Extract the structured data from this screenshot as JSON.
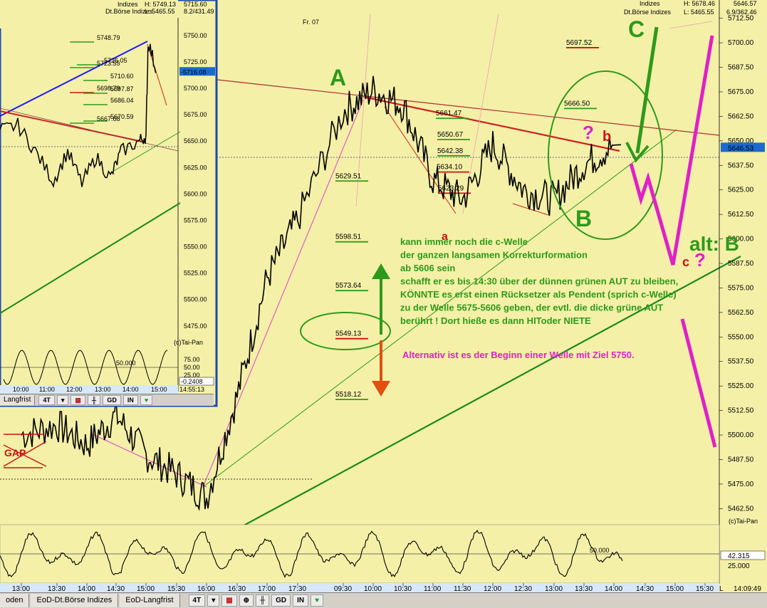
{
  "header": {
    "instrument_label": "Indizes",
    "exchange_label": "Dt.Börse Indizes",
    "high_text": "H: 5678.46",
    "low_text": "L: 5465.55",
    "extra_text": "6.9/362.46",
    "top_right_price": "5646.57",
    "day_marker": "Fr. 07"
  },
  "inset_header": {
    "instrument_label": "Indizes",
    "exchange_label": "Dt.Börse Indizes",
    "high_text": "H: 5749.13",
    "low_text": "L: 5465.55",
    "top_right_price": "5715.60",
    "extra_text": "8.2/431.49",
    "copyright": "(c)Tai-Pan",
    "current_value": "-5716.08",
    "osc_value": "-0.2408",
    "time_readout": "14:55:13"
  },
  "colors": {
    "background": "#f4f0a8",
    "price_line": "#000000",
    "green_annot": "#2e9a1a",
    "magenta_annot": "#e020c8",
    "red_annot": "#d01010",
    "blue_trend": "#1a1aff",
    "orange_arrow": "#e05010",
    "current_price_bg": "#1a6ad0"
  },
  "chart_data": {
    "type": "line",
    "title": "",
    "xlabel": "",
    "ylabel": "",
    "ylim": [
      5455,
      5720
    ],
    "y_ticks": [
      "5712.50",
      "5700.00",
      "5687.50",
      "5675.00",
      "5662.50",
      "5650.00",
      "5637.50",
      "5625.00",
      "5612.50",
      "5600.00",
      "5587.50",
      "5575.00",
      "5562.50",
      "5550.00",
      "5537.50",
      "5525.00",
      "5512.50",
      "5500.00",
      "5487.50",
      "5475.00",
      "5462.50"
    ],
    "x_ticks": [
      "13:00",
      "13:30",
      "14:00",
      "14:30",
      "15:00",
      "15:30",
      "16:00",
      "16:30",
      "17:00",
      "17:30",
      "09:30",
      "10:00",
      "10:30",
      "11:00",
      "11:30",
      "12:00",
      "12:30",
      "13:00",
      "13:30",
      "14:00",
      "14:30",
      "15:00",
      "15:30"
    ],
    "current_price": "5646.53",
    "copyright": "(c)Tai-Pan",
    "series": [
      {
        "x": [
          "13:00",
          "13:30",
          "14:00",
          "14:30",
          "15:00",
          "15:30",
          "16:00",
          "16:30",
          "17:00",
          "17:30",
          "09:30",
          "10:00",
          "10:30",
          "11:00",
          "11:30",
          "12:00",
          "12:30",
          "13:00",
          "13:30",
          "14:00"
        ],
        "values": [
          5500,
          5505,
          5495,
          5510,
          5490,
          5480,
          5468,
          5520,
          5580,
          5610,
          5665,
          5676,
          5668,
          5630,
          5620,
          5648,
          5625,
          5620,
          5638,
          5648
        ]
      }
    ],
    "levels": [
      {
        "label": "5697.52",
        "value": 5697.52
      },
      {
        "label": "5666.50",
        "value": 5666.5
      },
      {
        "label": "5661.47",
        "value": 5661.47
      },
      {
        "label": "5650.67",
        "value": 5650.67
      },
      {
        "label": "5642.38",
        "value": 5642.38
      },
      {
        "label": "5634.10",
        "value": 5634.1
      },
      {
        "label": "5629.51",
        "value": 5629.51
      },
      {
        "label": "5623.29",
        "value": 5623.29
      },
      {
        "label": "5598.51",
        "value": 5598.51
      },
      {
        "label": "5573.64",
        "value": 5573.64
      },
      {
        "label": "5549.13",
        "value": 5549.13
      },
      {
        "label": "5518.12",
        "value": 5518.12
      }
    ],
    "oscillator": {
      "ticks": [
        "42.315",
        "25.000"
      ],
      "mid_label": "50.000"
    },
    "inset": {
      "y_ticks": [
        "5750.00",
        "5725.00",
        "5700.00",
        "5675.00",
        "5650.00",
        "5625.00",
        "5600.00",
        "5575.00",
        "5550.00",
        "5525.00",
        "5500.00",
        "5475.00"
      ],
      "x_ticks": [
        "10:00",
        "11:00",
        "12:00",
        "13:00",
        "14:00",
        "15:00"
      ],
      "levels": [
        "5748.79",
        "5726.05",
        "5723.55",
        "5710.60",
        "5698.79",
        "5697.87",
        "5686.04",
        "5670.59",
        "5667.68"
      ],
      "osc_ticks": [
        "75.00",
        "50.00",
        "25.00"
      ],
      "osc_mid_label": "50.000"
    }
  },
  "annotations": {
    "wave_A": "A",
    "wave_B": "B",
    "wave_C": "C",
    "wave_a": "a",
    "wave_b": "b",
    "wave_c": "c",
    "question_mark": "?",
    "question_mark_2": "?",
    "alt_label": "alt: B",
    "gap_label": "GAP",
    "text_green_lines": [
      "kann immer noch die c-Welle",
      "der ganzen langsamen Korrekturformation",
      "ab 5606 sein",
      "schafft er es bis 14:30 über der dünnen grünen AUT zu bleiben,",
      "KÖNNTE es erst einen Rücksetzer als Pendent (sprich c-Welle)",
      "zu der Welle 5675-5606 geben, der evtl. die dicke grüne AUT",
      "berührt !  Dort hieße es dann HIToder NIETE"
    ],
    "text_magenta": "Alternativ ist es der Beginn einer Welle mit Ziel 5750."
  },
  "tabs": {
    "main": [
      "oden",
      "EoD-Dt.Börse Indizes",
      "EoD-Langfrist"
    ],
    "inset": [
      "Langfrist"
    ],
    "interval": "4T",
    "buttons": [
      "GD",
      "IN"
    ]
  },
  "status": {
    "time": "14:09:49",
    "l_marker": "L"
  }
}
